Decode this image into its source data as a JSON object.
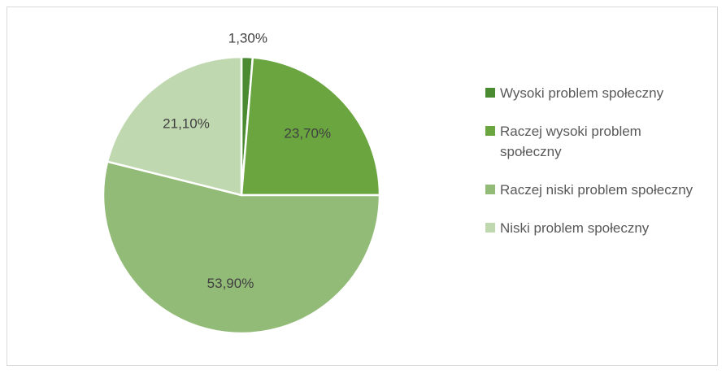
{
  "chart_data": {
    "type": "pie",
    "categories": [
      "Wysoki problem społeczny",
      "Raczej wysoki problem społeczny",
      "Raczej niski problem społeczny",
      "Niski problem społeczny"
    ],
    "values": [
      1.3,
      23.7,
      53.9,
      21.1
    ],
    "value_labels": [
      "1,30%",
      "23,70%",
      "53,90%",
      "21,10%"
    ],
    "colors": [
      "#4a8a30",
      "#6aa540",
      "#93bb78",
      "#c0d8b0"
    ],
    "legend": "right"
  }
}
